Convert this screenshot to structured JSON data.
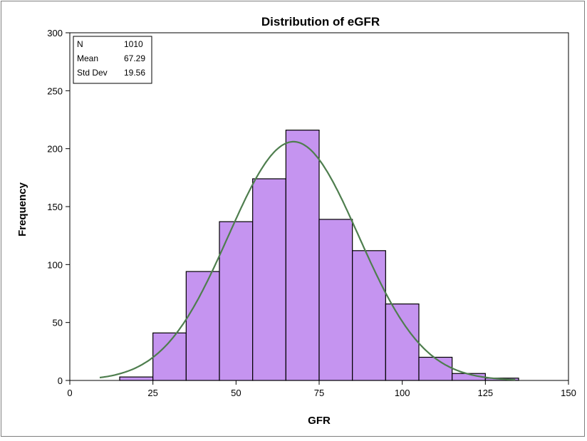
{
  "chart_data": {
    "type": "bar",
    "title": "Distribution of eGFR",
    "xlabel": "GFR",
    "ylabel": "Frequency",
    "xlim": [
      0,
      150
    ],
    "ylim": [
      0,
      300
    ],
    "xticks": [
      0,
      25,
      50,
      75,
      100,
      125,
      150
    ],
    "yticks": [
      0,
      50,
      100,
      150,
      200,
      250,
      300
    ],
    "bin_width": 10,
    "bins": [
      {
        "start": 15,
        "end": 25,
        "count": 3
      },
      {
        "start": 25,
        "end": 35,
        "count": 41
      },
      {
        "start": 35,
        "end": 45,
        "count": 94
      },
      {
        "start": 45,
        "end": 55,
        "count": 137
      },
      {
        "start": 55,
        "end": 65,
        "count": 174
      },
      {
        "start": 65,
        "end": 75,
        "count": 216
      },
      {
        "start": 75,
        "end": 85,
        "count": 139
      },
      {
        "start": 85,
        "end": 95,
        "count": 112
      },
      {
        "start": 95,
        "end": 105,
        "count": 66
      },
      {
        "start": 105,
        "end": 115,
        "count": 20
      },
      {
        "start": 115,
        "end": 125,
        "count": 6
      },
      {
        "start": 125,
        "end": 135,
        "count": 2
      }
    ],
    "normal_curve": {
      "mean": 67.29,
      "sd": 19.56,
      "n": 1010,
      "x_range": [
        9,
        134
      ]
    },
    "stats": [
      {
        "label": "N",
        "value": "1010"
      },
      {
        "label": "Mean",
        "value": "67.29"
      },
      {
        "label": "Std Dev",
        "value": "19.56"
      }
    ],
    "colors": {
      "bar_fill": "#c594f0",
      "bar_stroke": "#000000",
      "curve": "#4e7e4e",
      "border": "#7f7f7f"
    },
    "grid": false
  }
}
